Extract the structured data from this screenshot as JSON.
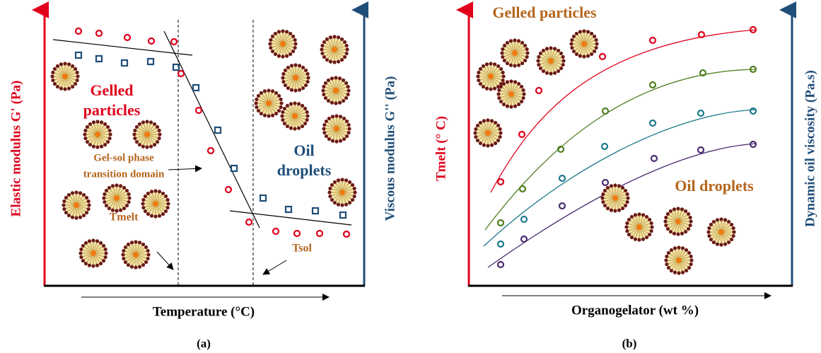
{
  "panel_a": {
    "y_label_left": "Elastic modulus G' (Pa)",
    "y_label_right": "Viscous modulus G'' (Pa)",
    "x_label": "Temperature (°C)",
    "gelled_label": [
      "Gelled",
      "particles"
    ],
    "transition_label": [
      "Gel-sol phase",
      "transition domain"
    ],
    "oil_label": [
      "Oil",
      "droplets"
    ],
    "tmelt_label": "Tmelt",
    "tsol_label": "Tsol",
    "caption": "(a)"
  },
  "panel_b": {
    "y_label_left": "Tmelt (° C)",
    "y_label_right": "Dynamic oil viscosity (Pa.s)",
    "x_label": "Organogelator (wt %)",
    "gelled_label": "Gelled particles",
    "oil_label": "Oil droplets",
    "caption": "(b)"
  }
}
